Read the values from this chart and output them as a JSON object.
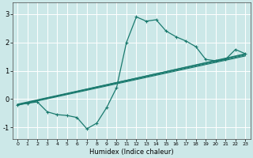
{
  "title": "",
  "xlabel": "Humidex (Indice chaleur)",
  "bg_color": "#cce8e8",
  "grid_color": "#ffffff",
  "line_color": "#1a7a6e",
  "xlim": [
    -0.5,
    23.5
  ],
  "ylim": [
    -1.4,
    3.4
  ],
  "xticks": [
    0,
    1,
    2,
    3,
    4,
    5,
    6,
    7,
    8,
    9,
    10,
    11,
    12,
    13,
    14,
    15,
    16,
    17,
    18,
    19,
    20,
    21,
    22,
    23
  ],
  "yticks": [
    -1,
    0,
    1,
    2,
    3
  ],
  "series_main": [
    [
      0,
      -0.2
    ],
    [
      1,
      -0.15
    ],
    [
      2,
      -0.1
    ],
    [
      3,
      -0.45
    ],
    [
      4,
      -0.55
    ],
    [
      5,
      -0.58
    ],
    [
      6,
      -0.65
    ],
    [
      7,
      -1.05
    ],
    [
      8,
      -0.85
    ],
    [
      9,
      -0.3
    ],
    [
      10,
      0.4
    ],
    [
      11,
      2.0
    ],
    [
      12,
      2.9
    ],
    [
      13,
      2.75
    ],
    [
      14,
      2.8
    ],
    [
      15,
      2.4
    ],
    [
      16,
      2.2
    ],
    [
      17,
      2.05
    ],
    [
      18,
      1.85
    ],
    [
      19,
      1.4
    ],
    [
      20,
      1.35
    ],
    [
      21,
      1.4
    ],
    [
      22,
      1.75
    ],
    [
      23,
      1.6
    ]
  ],
  "series_linear1": [
    [
      0,
      -0.2
    ],
    [
      23,
      1.6
    ]
  ],
  "series_linear2": [
    [
      0,
      -0.2
    ],
    [
      23,
      1.55
    ]
  ],
  "series_linear3": [
    [
      0,
      -0.18
    ],
    [
      23,
      1.58
    ]
  ],
  "series_linear4": [
    [
      0,
      -0.22
    ],
    [
      23,
      1.52
    ]
  ]
}
